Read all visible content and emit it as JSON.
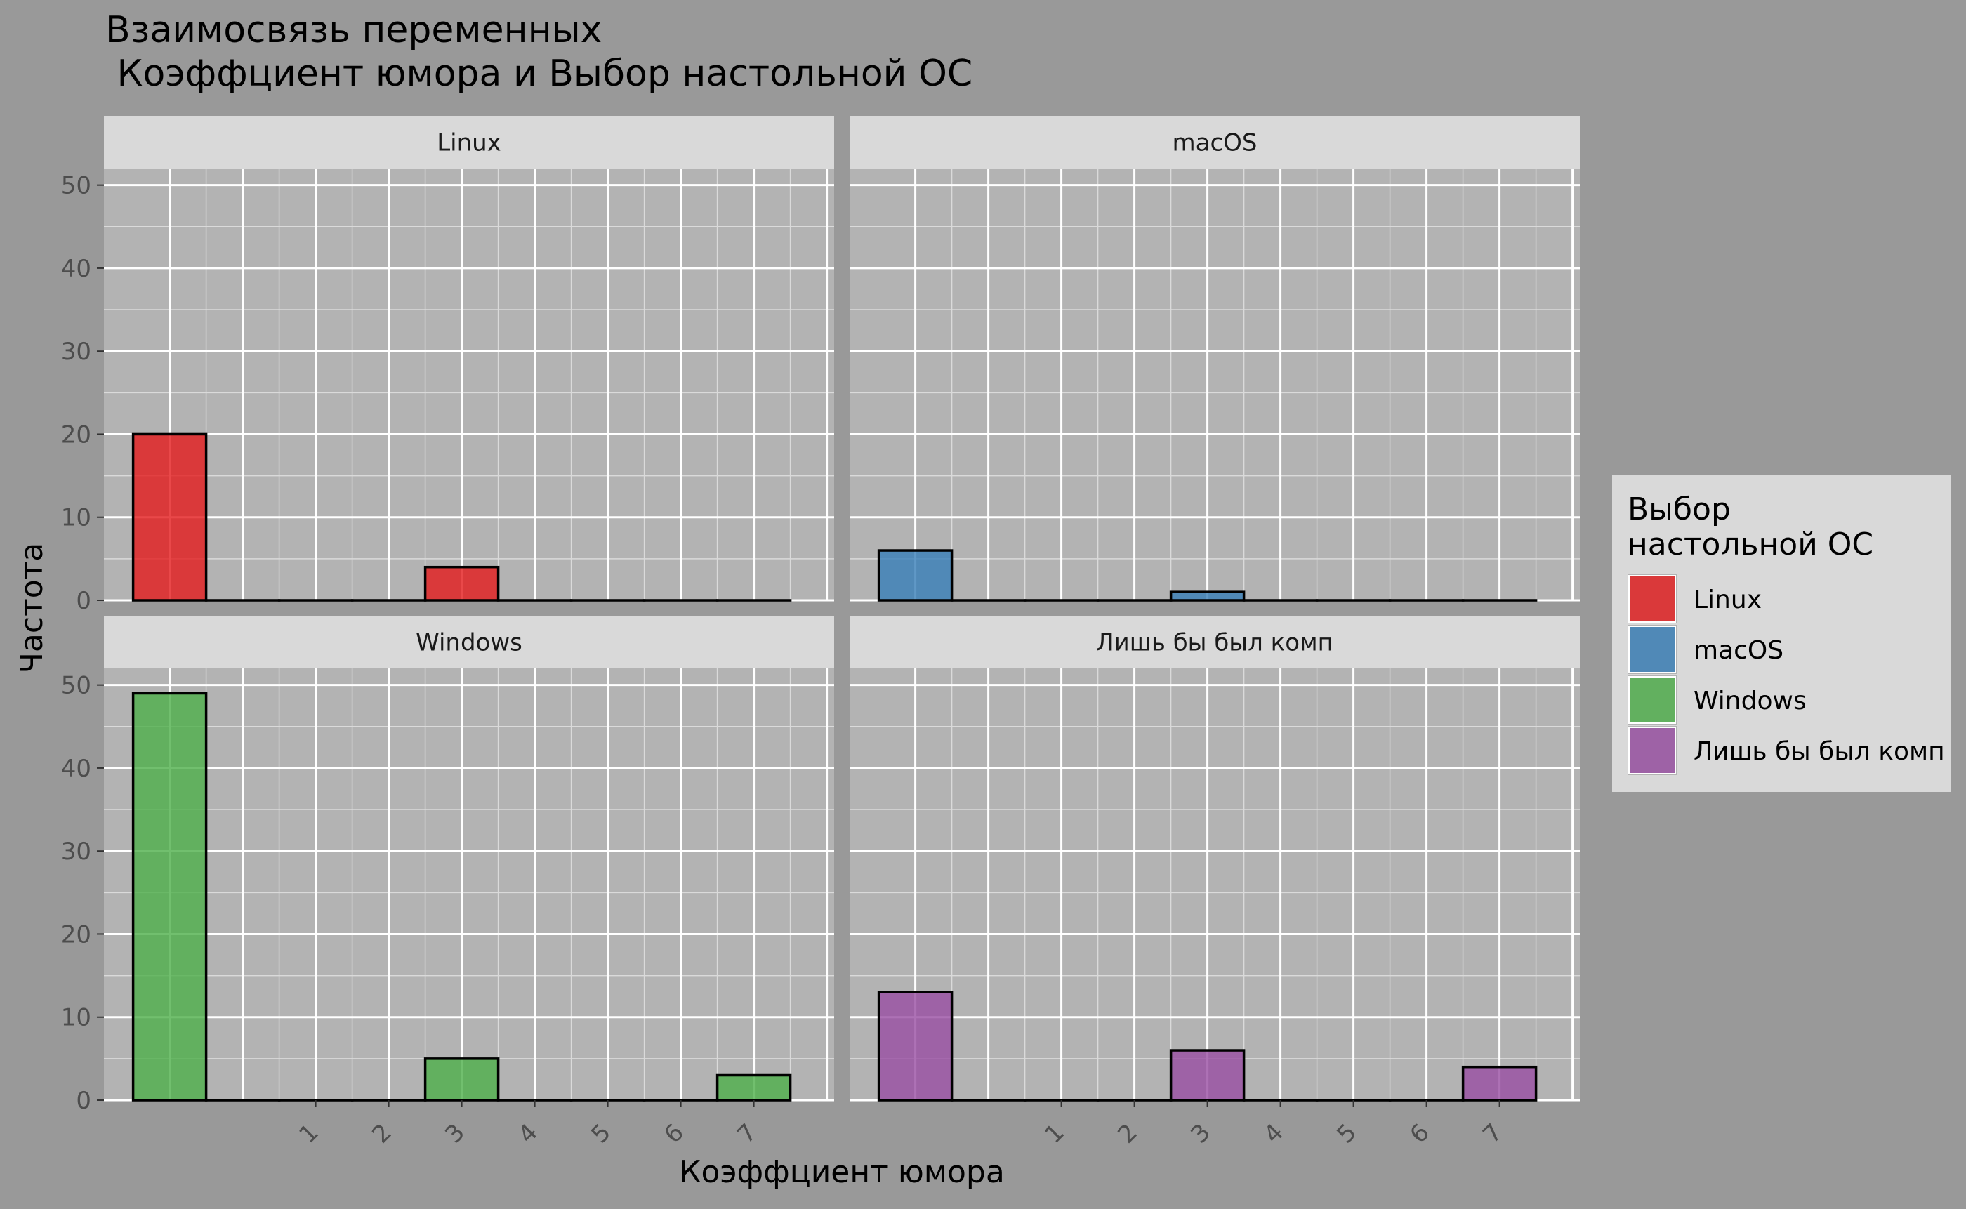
{
  "chart_data": {
    "type": "bar",
    "title": "Взаимосвязь переменных\n Коэффциент юмора и Выбор настольной ОС",
    "xlabel": "Коэффциент юмора",
    "ylabel": "Частота",
    "ylim": [
      0,
      52
    ],
    "yticks": [
      0,
      10,
      20,
      30,
      40,
      50
    ],
    "xlim": [
      -1.9,
      8.1
    ],
    "xticks": [
      1,
      2,
      3,
      4,
      5,
      6,
      7
    ],
    "xtick_labels": [
      "1",
      "2",
      "3",
      "4",
      "5",
      "6",
      "7"
    ],
    "bin_edges": [
      -1.5,
      -0.5,
      0.5,
      1.5,
      2.5,
      3.5,
      4.5,
      5.5,
      6.5,
      7.5
    ],
    "grid": true,
    "legend": {
      "title": "Выбор\nнастольной ОС",
      "position": "right"
    },
    "facets": [
      {
        "name": "Linux",
        "color": "#E41A1C",
        "values": [
          20,
          0,
          0,
          0,
          4,
          0,
          0,
          0,
          0
        ]
      },
      {
        "name": "macOS",
        "color": "#377EB8",
        "values": [
          6,
          0,
          0,
          0,
          1,
          0,
          0,
          0,
          0
        ]
      },
      {
        "name": "Windows",
        "color": "#4DAF4A",
        "values": [
          49,
          0,
          0,
          0,
          5,
          0,
          0,
          0,
          3
        ]
      },
      {
        "name": "Лишь бы был комп",
        "color": "#984EA3",
        "values": [
          13,
          0,
          0,
          0,
          6,
          0,
          0,
          0,
          4
        ]
      }
    ]
  }
}
